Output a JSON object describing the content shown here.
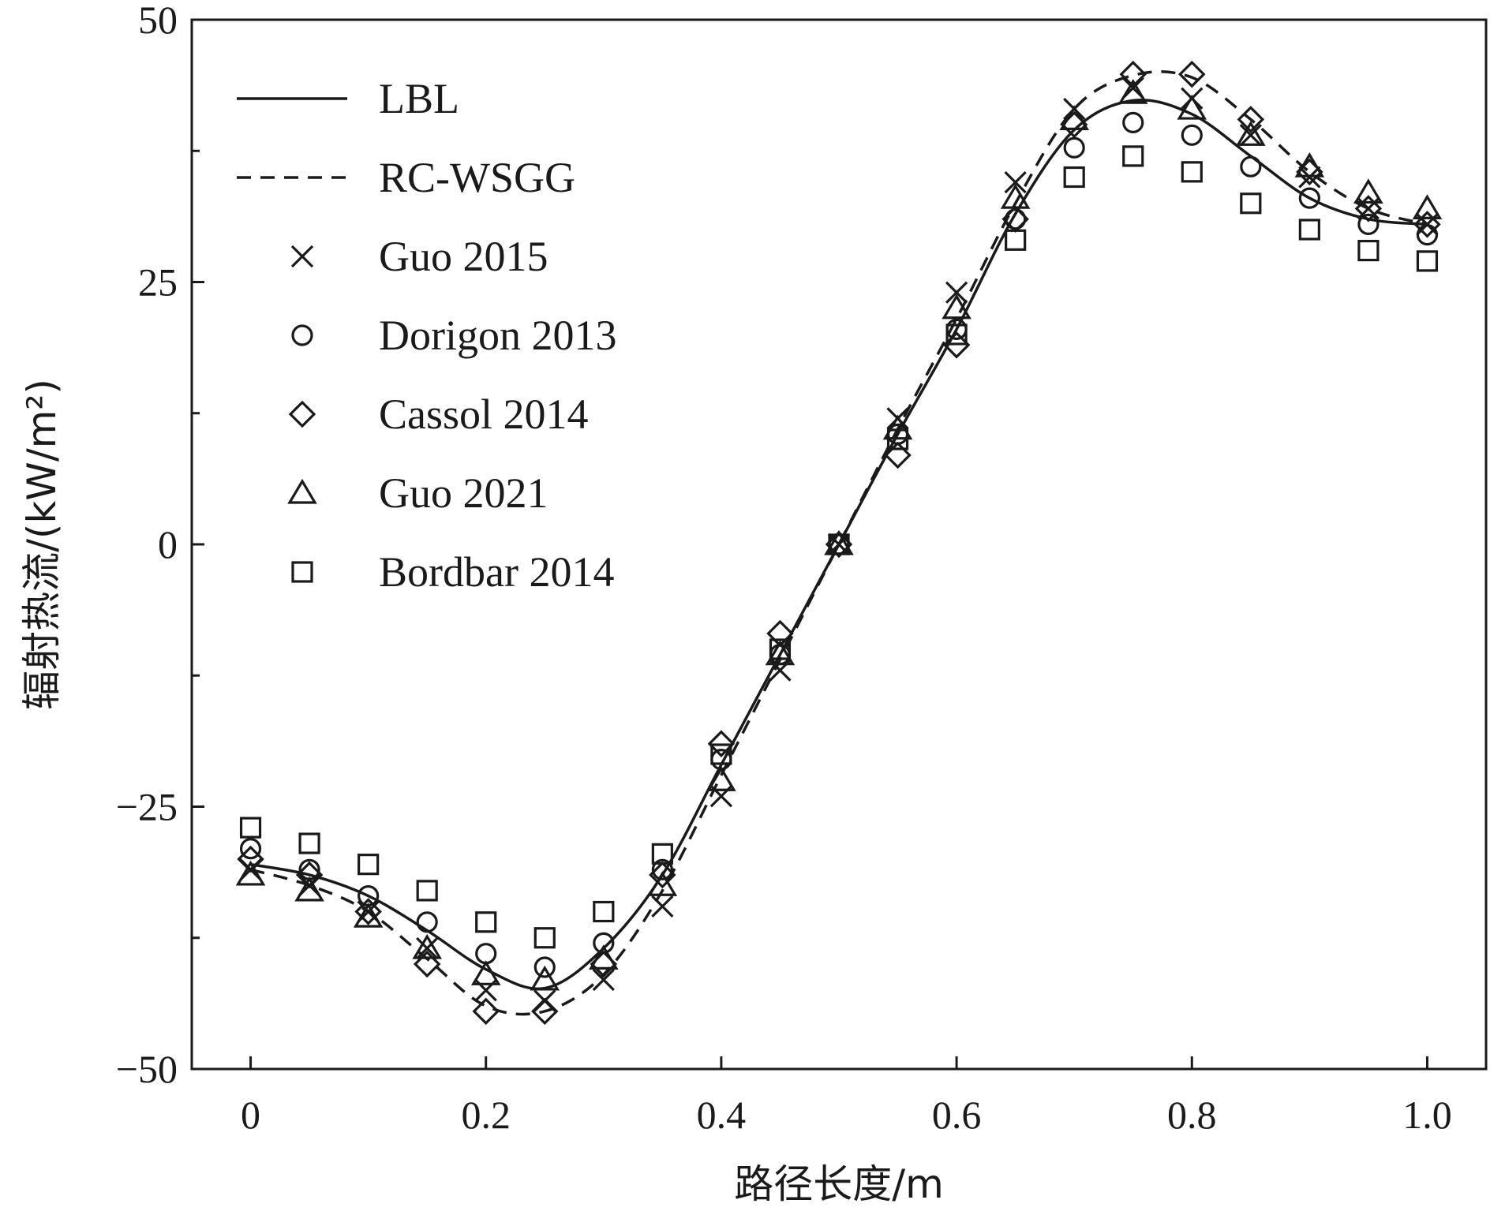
{
  "chart_data": {
    "type": "line",
    "xlabel": "路径长度/m",
    "ylabel": "辐射热流/(kW/m²)",
    "xlim": [
      -0.05,
      1.05
    ],
    "ylim": [
      -50,
      50
    ],
    "xticks": [
      0,
      0.2,
      0.4,
      0.6,
      0.8,
      1.0
    ],
    "xtick_labels": [
      "0",
      "0.2",
      "0.4",
      "0.6",
      "0.8",
      "1.0"
    ],
    "yticks": [
      -50,
      -25,
      0,
      25,
      50
    ],
    "ytick_labels": [
      "−50",
      "−25",
      "0",
      "25",
      "50"
    ],
    "yminor_ticks": [
      -37.5,
      -12.5,
      12.5,
      37.5
    ],
    "legend_position": "top-left",
    "grid": false,
    "x": [
      0,
      0.05,
      0.1,
      0.15,
      0.2,
      0.25,
      0.3,
      0.35,
      0.4,
      0.45,
      0.5,
      0.55,
      0.6,
      0.65,
      0.7,
      0.75,
      0.8,
      0.85,
      0.9,
      0.95,
      1.0
    ],
    "series": [
      {
        "name": "LBL",
        "style": "solid",
        "marker": "none",
        "values": [
          -30.5,
          -31.5,
          -33.5,
          -36.8,
          -40.5,
          -42.3,
          -38.5,
          -31.5,
          -21.0,
          -10.5,
          0,
          10.5,
          20.5,
          31.5,
          39.5,
          42.3,
          41.0,
          37.0,
          33.0,
          31.0,
          30.5
        ]
      },
      {
        "name": "RC-WSGG",
        "style": "dashed",
        "marker": "none",
        "values": [
          -31.0,
          -32.5,
          -35.0,
          -39.5,
          -44.0,
          -44.5,
          -41.0,
          -33.0,
          -22.0,
          -11.0,
          0,
          11.0,
          21.5,
          32.5,
          41.5,
          44.7,
          44.5,
          40.5,
          35.5,
          32.0,
          30.5
        ]
      },
      {
        "name": "Guo 2015",
        "style": "none",
        "marker": "x",
        "values": [
          -31.0,
          -32.5,
          -35.0,
          -38.5,
          -42.5,
          -43.5,
          -41.5,
          -34.5,
          -24.0,
          -12.0,
          0,
          12.0,
          24.0,
          34.5,
          41.5,
          43.5,
          42.5,
          39.0,
          35.0,
          32.0,
          30.5
        ]
      },
      {
        "name": "Dorigon 2013",
        "style": "none",
        "marker": "circle",
        "values": [
          -29.0,
          -31.0,
          -33.5,
          -36.0,
          -39.0,
          -40.3,
          -38.0,
          -31.0,
          -20.5,
          -10.5,
          0,
          10.5,
          20.5,
          31.0,
          37.8,
          40.2,
          39.0,
          36.0,
          33.0,
          30.5,
          29.5
        ]
      },
      {
        "name": "Cassol 2014",
        "style": "none",
        "marker": "diamond",
        "values": [
          -30.0,
          -31.5,
          -35.0,
          -40.0,
          -44.5,
          -44.5,
          -40.0,
          -31.5,
          -19.0,
          -8.5,
          0,
          8.5,
          19.0,
          31.0,
          40.0,
          44.8,
          44.8,
          40.5,
          35.5,
          32.0,
          30.5
        ]
      },
      {
        "name": "Guo 2021",
        "style": "none",
        "marker": "triangle",
        "values": [
          -31.5,
          -33.0,
          -35.5,
          -38.5,
          -41.0,
          -41.5,
          -39.5,
          -32.5,
          -22.5,
          -10.5,
          0,
          11.0,
          22.5,
          33.0,
          40.5,
          43.0,
          41.5,
          39.0,
          36.0,
          33.5,
          32.0
        ]
      },
      {
        "name": "Bordbar 2014",
        "style": "none",
        "marker": "square",
        "values": [
          -27.0,
          -28.5,
          -30.5,
          -33.0,
          -36.0,
          -37.5,
          -35.0,
          -29.5,
          -20.0,
          -10.0,
          0,
          10.0,
          20.0,
          29.0,
          35.0,
          37.0,
          35.5,
          32.5,
          30.0,
          28.0,
          27.0
        ]
      }
    ]
  }
}
